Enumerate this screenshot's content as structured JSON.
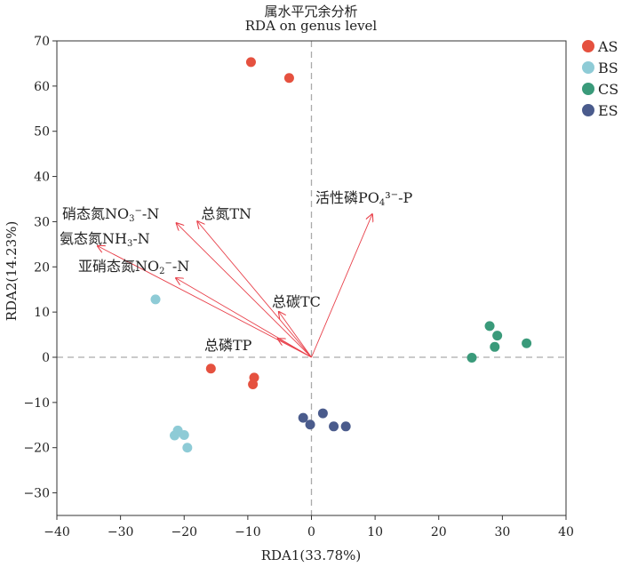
{
  "chart_data": {
    "type": "scatter",
    "title": "属水平冗余分析",
    "subtitle": "RDA on genus level",
    "xlabel": "RDA1(33.78%)",
    "ylabel": "RDA2(14.23%)",
    "xlim": [
      -40,
      40
    ],
    "ylim": [
      -35,
      70
    ],
    "xticks": [
      "−40",
      "−30",
      "−20",
      "−10",
      "0",
      "10",
      "20",
      "30",
      "40"
    ],
    "yticks": [
      "−30",
      "−20",
      "−10",
      "0",
      "10",
      "20",
      "30",
      "40",
      "50",
      "60",
      "70"
    ],
    "xtick_values": [
      -40,
      -30,
      -20,
      -10,
      0,
      10,
      20,
      30,
      40
    ],
    "ytick_values": [
      -30,
      -20,
      -10,
      0,
      10,
      20,
      30,
      40,
      50,
      60,
      70
    ],
    "series": [
      {
        "name": "AS",
        "color": "#e5513f",
        "points": [
          [
            -9.5,
            65.3
          ],
          [
            -3.5,
            61.8
          ],
          [
            -15.8,
            -2.5
          ],
          [
            -9.0,
            -4.5
          ],
          [
            -9.2,
            -6.0
          ]
        ]
      },
      {
        "name": "BS",
        "color": "#8ecbd6",
        "points": [
          [
            -24.5,
            12.8
          ],
          [
            -21.0,
            -16.2
          ],
          [
            -21.5,
            -17.3
          ],
          [
            -20.0,
            -17.2
          ],
          [
            -19.5,
            -20.0
          ]
        ]
      },
      {
        "name": "CS",
        "color": "#3a9a7a",
        "points": [
          [
            28.0,
            6.9
          ],
          [
            29.2,
            4.8
          ],
          [
            33.8,
            3.1
          ],
          [
            28.8,
            2.3
          ],
          [
            25.2,
            -0.1
          ]
        ]
      },
      {
        "name": "ES",
        "color": "#4a5b8c",
        "points": [
          [
            -1.3,
            -13.4
          ],
          [
            1.8,
            -12.4
          ],
          [
            -0.2,
            -14.9
          ],
          [
            3.5,
            -15.3
          ],
          [
            5.4,
            -15.3
          ]
        ]
      }
    ],
    "vectors": [
      {
        "label": "活性磷PO₄³⁻-P",
        "end": [
          9.6,
          31.8
        ]
      },
      {
        "label": "硝态氮NO₃⁻-N",
        "end": [
          -21.3,
          29.8
        ]
      },
      {
        "label": "总氮TN",
        "end": [
          -18.0,
          30.2
        ]
      },
      {
        "label": "氨态氮NH₃-N",
        "end": [
          -33.7,
          24.7
        ]
      },
      {
        "label": "亚硝态氮NO₂⁻-N",
        "end": [
          -21.4,
          17.6
        ]
      },
      {
        "label": "总碳TC",
        "end": [
          -5.2,
          10.2
        ]
      },
      {
        "label": "总磷TP",
        "end": [
          -5.4,
          4.2
        ]
      }
    ],
    "grid": false,
    "legend_position": "top-right"
  },
  "colors": {
    "arrow": "#e8404a",
    "axis": "#333333",
    "zero_line": "#aaaaaa"
  }
}
